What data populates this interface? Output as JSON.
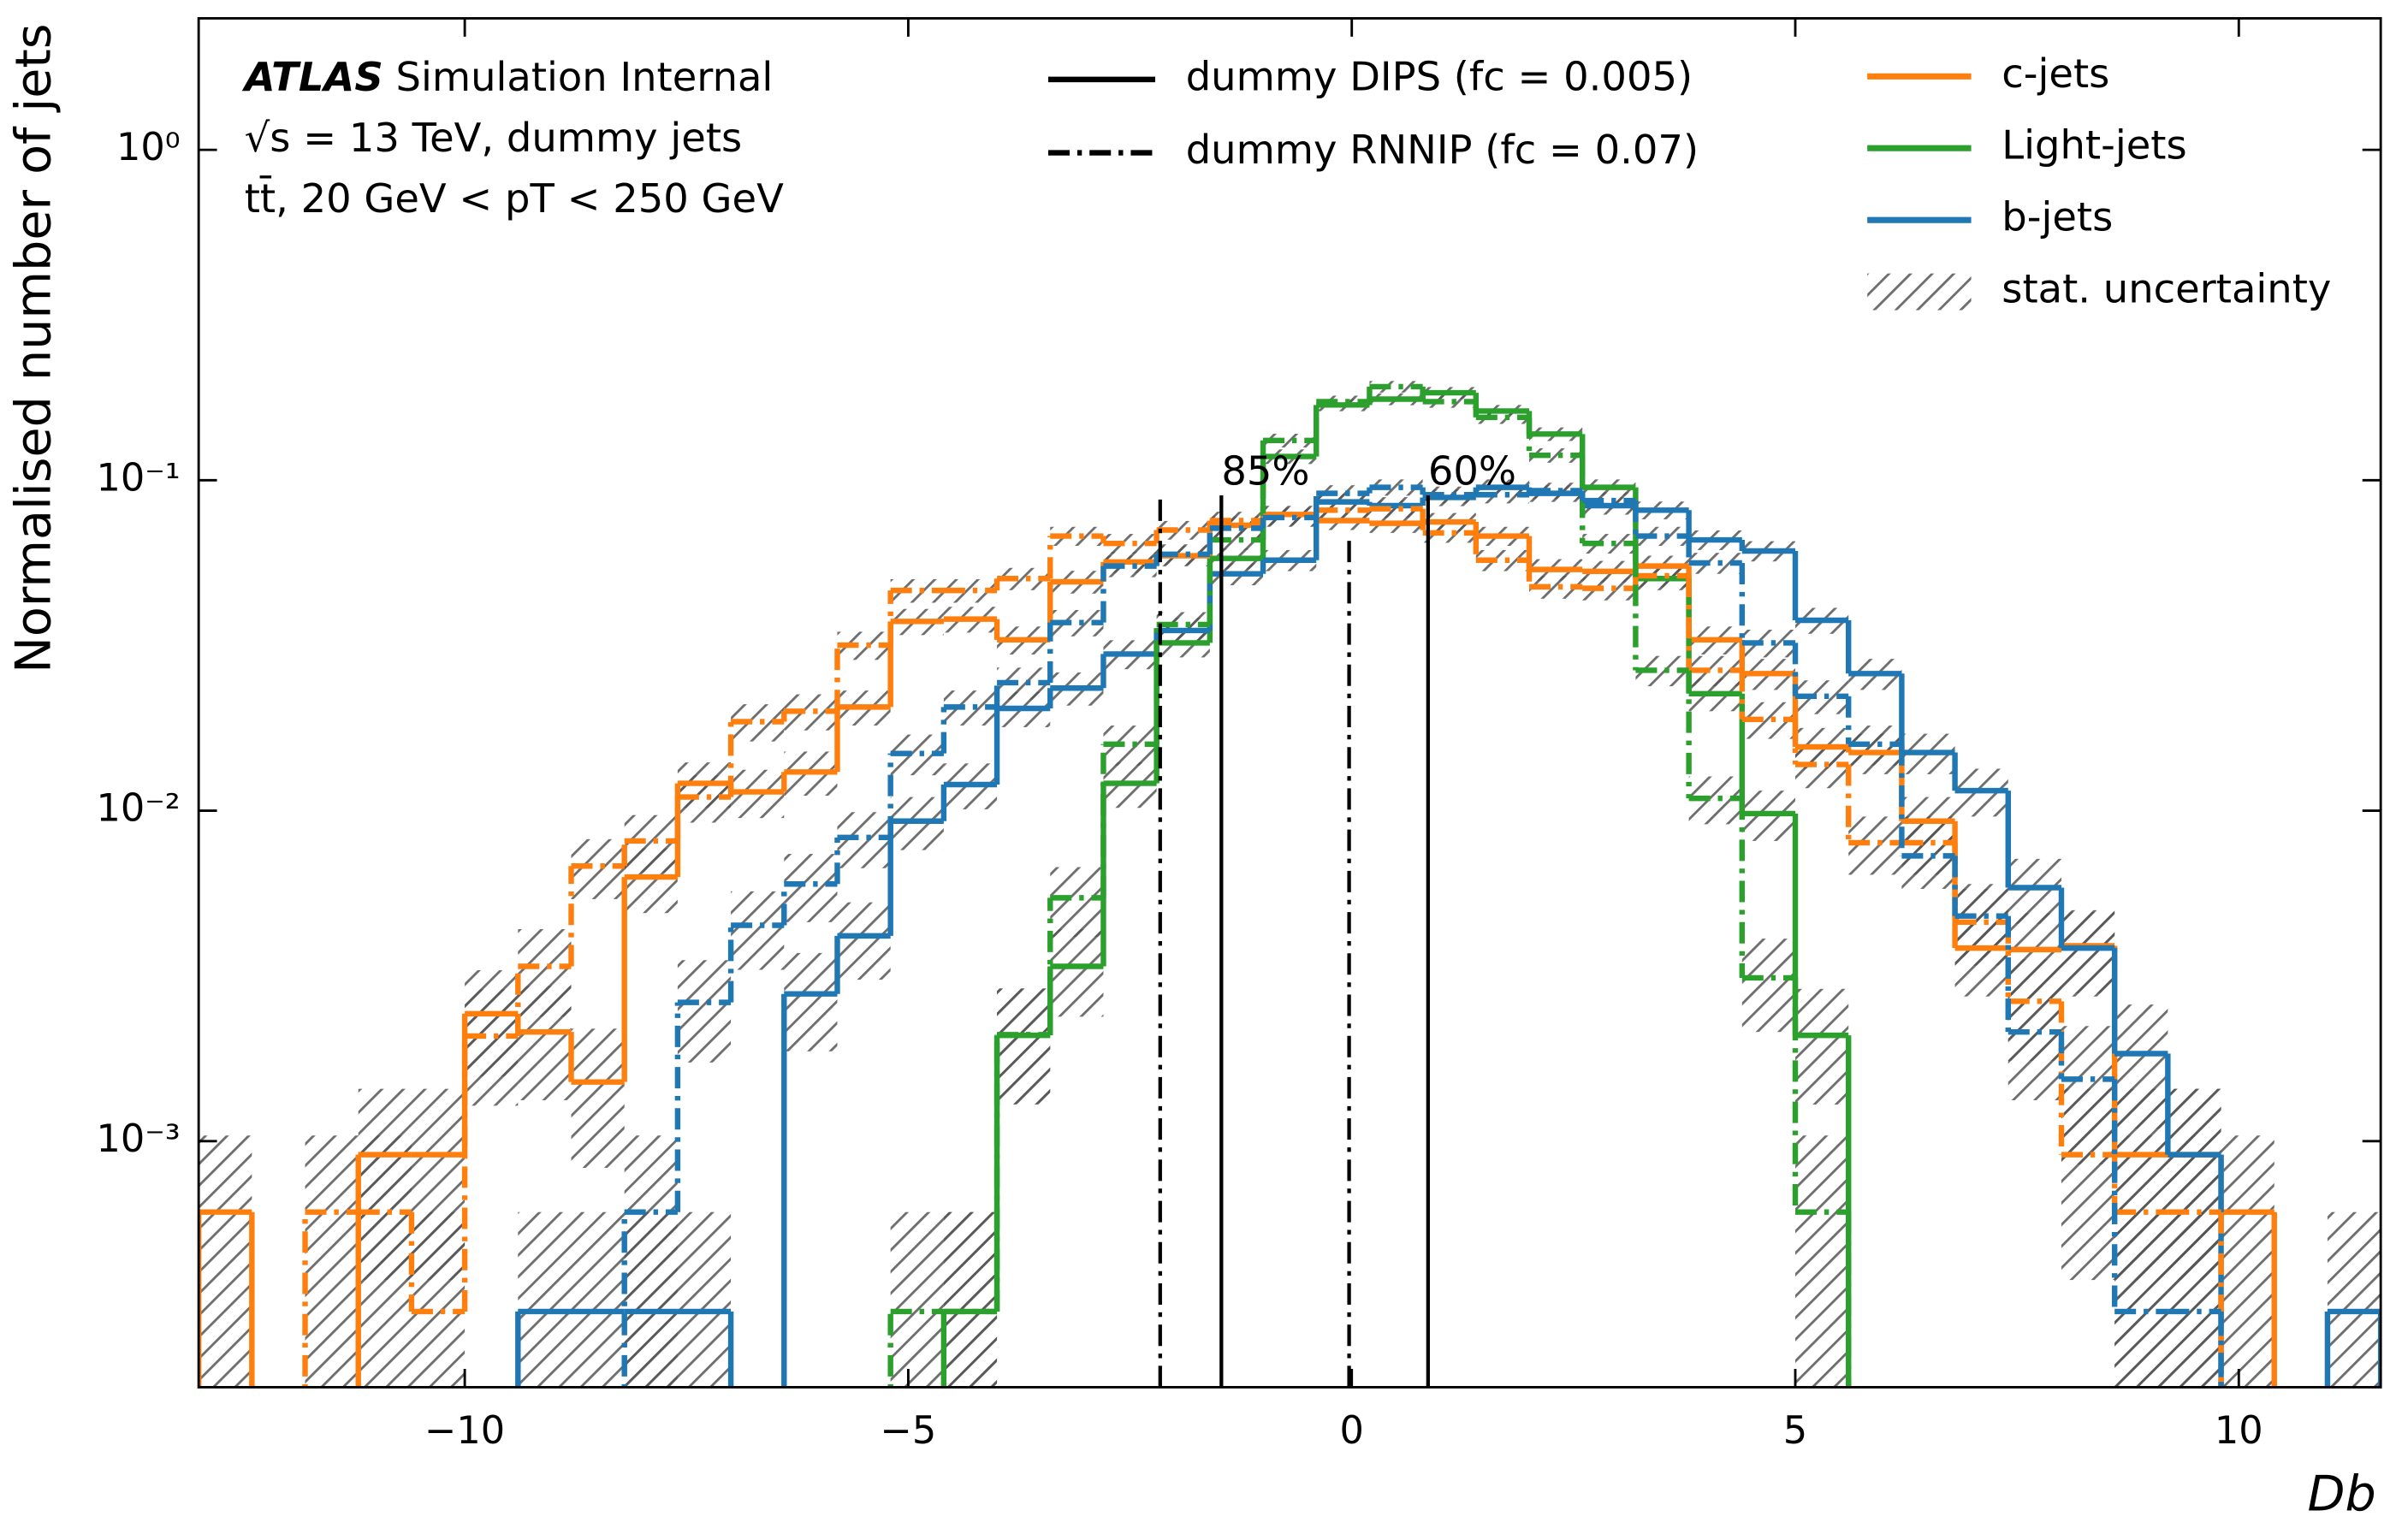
{
  "chart_data": {
    "type": "histogram",
    "xlabel": "Db",
    "ylabel": "Normalised number of jets",
    "atlas_label": "ATLAS",
    "atlas_status": "Simulation Internal",
    "annotations": [
      "√s = 13 TeV, dummy jets",
      "tt̄, 20 GeV < pT < 250 GeV"
    ],
    "xlim": [
      -13,
      11.6
    ],
    "ylim": [
      0.00018,
      2.5
    ],
    "log_y": true,
    "xticks": [
      {
        "value": -10,
        "label": "−10"
      },
      {
        "value": -5,
        "label": "−5"
      },
      0,
      5,
      10
    ],
    "yticks": [
      {
        "value": 0.001,
        "label": "10⁻³"
      },
      {
        "value": 0.01,
        "label": "10⁻²"
      },
      {
        "value": 0.1,
        "label": "10⁻¹"
      },
      {
        "value": 1,
        "label": "10⁰"
      }
    ],
    "bins": [
      -13,
      -12.4,
      -11.8,
      -11.2,
      -10.6,
      -10,
      -9.4,
      -8.8,
      -8.2,
      -7.6,
      -7,
      -6.4,
      -5.8,
      -5.2,
      -4.6,
      -4,
      -3.4,
      -2.8,
      -2.2,
      -1.6,
      -1,
      -0.4,
      0.2,
      0.8,
      1.4,
      2,
      2.6,
      3.2,
      3.8,
      4.4,
      5,
      5.6,
      6.2,
      6.8,
      7.4,
      8,
      8.6,
      9.2,
      9.8,
      10.4,
      11,
      11.6
    ],
    "flavours": [
      {
        "name": "c-jets",
        "color": "#ff7f0e"
      },
      {
        "name": "Light-jets",
        "color": "#2ca02c"
      },
      {
        "name": "b-jets",
        "color": "#1f77b4"
      }
    ],
    "uncertainty_label": "stat. uncertainty",
    "taggers": [
      {
        "name": "dummy DIPS (fc = 0.005)",
        "linestyle": "solid",
        "values": [
          [
            0.00061,
            null,
            null,
            0.00091,
            0.00091,
            0.00243,
            0.00214,
            0.00151,
            0.0063,
            0.0121,
            0.0114,
            0.0131,
            0.0206,
            0.0374,
            0.038,
            0.0329,
            0.0493,
            0.0566,
            0.0591,
            0.0731,
            0.0788,
            0.0755,
            0.0741,
            0.0748,
            0.0678,
            0.0537,
            0.053,
            0.055,
            0.0329,
            0.026,
            0.0156,
            0.015,
            0.0093,
            0.00384,
            0.0038,
            0.0039,
            0.00091,
            0.00091,
            0.00061,
            null,
            null
          ],
          [
            null,
            null,
            null,
            null,
            null,
            null,
            null,
            null,
            null,
            null,
            null,
            null,
            null,
            null,
            0.000305,
            0.00209,
            0.00338,
            0.0121,
            0.0322,
            0.058,
            0.118,
            0.169,
            0.176,
            0.184,
            0.162,
            0.138,
            0.0952,
            0.0504,
            0.0226,
            0.0098,
            0.00209,
            null,
            null,
            null,
            null,
            null,
            null,
            null,
            null,
            null,
            null
          ],
          [
            null,
            null,
            null,
            null,
            null,
            null,
            0.000305,
            0.000305,
            0.000305,
            0.000305,
            null,
            0.00279,
            0.00418,
            0.0093,
            0.012,
            0.0204,
            0.0235,
            0.0298,
            0.0351,
            0.0521,
            0.0573,
            0.086,
            0.0838,
            0.0887,
            0.0952,
            0.0913,
            0.0838,
            0.0812,
            0.066,
            0.0611,
            0.0377,
            0.026,
            0.015,
            0.0115,
            0.00585,
            0.00384,
            0.00184,
            0.00091,
            null,
            null,
            0.000305
          ]
        ],
        "errors": [
          [
            0.00043,
            null,
            null,
            0.00053,
            0.00053,
            0.00086,
            0.00081,
            0.00068,
            0.0014,
            0.0019,
            0.0019,
            0.002,
            0.0025,
            0.0034,
            0.0034,
            0.0032,
            0.0039,
            0.0042,
            0.0042,
            0.0047,
            0.0049,
            0.0048,
            0.0048,
            0.0048,
            0.0045,
            0.004,
            0.004,
            0.0041,
            0.0032,
            0.0028,
            0.0022,
            0.0021,
            0.0017,
            0.0011,
            0.0011,
            0.0011,
            0.00053,
            0.00053,
            0.00043,
            null,
            null
          ],
          [
            null,
            null,
            null,
            null,
            null,
            null,
            null,
            null,
            null,
            null,
            null,
            null,
            null,
            null,
            0.000305,
            0.0008,
            0.001,
            0.0019,
            0.0031,
            0.0042,
            0.006,
            0.0072,
            0.0073,
            0.0075,
            0.007,
            0.0065,
            0.0054,
            0.0039,
            0.0026,
            0.0017,
            0.0008,
            null,
            null,
            null,
            null,
            null,
            null,
            null,
            null,
            null,
            null
          ],
          [
            null,
            null,
            null,
            null,
            null,
            null,
            0.000305,
            0.000305,
            0.000305,
            0.000305,
            null,
            0.00092,
            0.0011,
            0.0017,
            0.0019,
            0.0025,
            0.0027,
            0.003,
            0.0033,
            0.004,
            0.0042,
            0.0051,
            0.0051,
            0.0052,
            0.0054,
            0.0053,
            0.0051,
            0.005,
            0.0045,
            0.0043,
            0.0034,
            0.0028,
            0.0021,
            0.0019,
            0.0013,
            0.0011,
            0.00075,
            0.00053,
            null,
            null,
            0.000305
          ]
        ]
      },
      {
        "name": "dummy RNNIP (fc = 0.07)",
        "linestyle": "dashdot",
        "values": [
          [
            null,
            null,
            0.00061,
            0.00061,
            0.000305,
            0.00208,
            0.00338,
            0.0068,
            0.0081,
            0.011,
            0.0186,
            0.02,
            0.0317,
            0.0464,
            0.0464,
            0.0504,
            0.0678,
            0.0644,
            0.0707,
            0.0755,
            0.0778,
            0.0812,
            0.082,
            0.0693,
            0.0573,
            0.0476,
            0.0471,
            0.0514,
            0.0266,
            0.0189,
            0.0138,
            0.008,
            0.008,
            0.0046,
            0.00265,
            0.00091,
            0.00061,
            0.00061,
            null,
            null,
            null
          ],
          [
            null,
            null,
            null,
            null,
            null,
            null,
            null,
            null,
            null,
            null,
            null,
            null,
            null,
            0.000305,
            0.000305,
            0.0021,
            0.00545,
            0.0159,
            0.0366,
            0.066,
            0.132,
            0.173,
            0.192,
            0.173,
            0.155,
            0.119,
            0.0644,
            0.0266,
            0.0109,
            0.00312,
            0.00061,
            null,
            null,
            null,
            null,
            null,
            null,
            null,
            null,
            null,
            null
          ],
          [
            null,
            null,
            null,
            null,
            null,
            null,
            null,
            null,
            0.00061,
            0.00263,
            0.0045,
            0.006,
            0.0083,
            0.0149,
            0.0206,
            0.0244,
            0.0371,
            0.055,
            0.0597,
            0.0716,
            0.0771,
            0.0913,
            0.0952,
            0.0904,
            0.0904,
            0.093,
            0.0868,
            0.0678,
            0.0562,
            0.0322,
            0.0222,
            0.0159,
            0.0073,
            0.0048,
            0.00214,
            0.00154,
            0.000305,
            0.000305,
            null,
            null,
            null
          ]
        ],
        "errors": [
          [
            null,
            null,
            0.00043,
            0.00043,
            0.000305,
            0.0008,
            0.001,
            0.0014,
            0.0016,
            0.0018,
            0.0024,
            0.0025,
            0.0031,
            0.0038,
            0.0038,
            0.0039,
            0.0045,
            0.0044,
            0.0046,
            0.0048,
            0.0049,
            0.005,
            0.005,
            0.0046,
            0.0042,
            0.0038,
            0.0038,
            0.004,
            0.0028,
            0.0024,
            0.0021,
            0.0016,
            0.0016,
            0.0012,
            0.0009,
            0.00053,
            0.00043,
            0.00043,
            null,
            null,
            null
          ],
          [
            null,
            null,
            null,
            null,
            null,
            null,
            null,
            null,
            null,
            null,
            null,
            null,
            null,
            0.000305,
            0.000305,
            0.0008,
            0.0013,
            0.0022,
            0.0033,
            0.0045,
            0.0063,
            0.0073,
            0.0077,
            0.0073,
            0.0069,
            0.006,
            0.0044,
            0.0028,
            0.0018,
            0.00098,
            0.00043,
            null,
            null,
            null,
            null,
            null,
            null,
            null,
            null,
            null,
            null
          ],
          [
            null,
            null,
            null,
            null,
            null,
            null,
            null,
            null,
            0.00043,
            0.0009,
            0.0012,
            0.0014,
            0.0016,
            0.0021,
            0.0025,
            0.0027,
            0.0034,
            0.0041,
            0.0043,
            0.0047,
            0.0048,
            0.0053,
            0.0054,
            0.0053,
            0.0053,
            0.0053,
            0.0051,
            0.0045,
            0.0041,
            0.0031,
            0.0026,
            0.0022,
            0.0015,
            0.0012,
            0.00081,
            0.00069,
            0.000305,
            0.000305,
            null,
            null,
            null
          ]
        ]
      }
    ],
    "cut_lines": [
      {
        "label": "85%",
        "x": -1.47,
        "ymax": 0.09,
        "linestyle": "solid"
      },
      {
        "label": "60%",
        "x": 0.86,
        "ymax": 0.09,
        "linestyle": "solid"
      },
      {
        "x": -2.16,
        "ymax": 0.09,
        "linestyle": "dashdot"
      },
      {
        "x": -0.03,
        "ymax": 0.068,
        "linestyle": "dashdot"
      }
    ]
  }
}
